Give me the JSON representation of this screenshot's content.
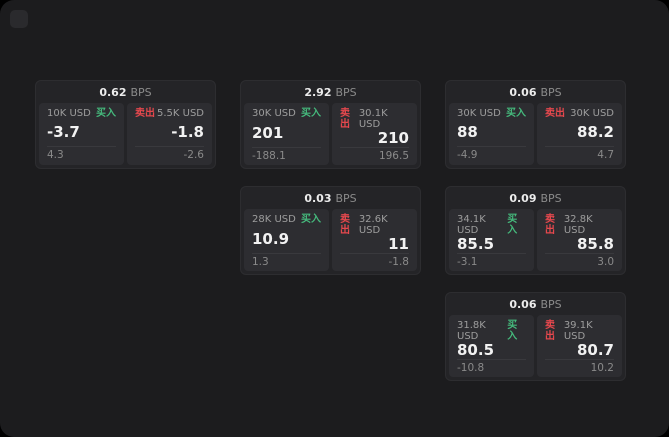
{
  "labels": {
    "buy": "买入",
    "sell": "卖出",
    "bps_suffix": "BPS"
  },
  "colors": {
    "buy_green": "#45b97c",
    "sell_red": "#e5484d",
    "background": "#1c1c1e",
    "card_bg": "#242427",
    "panel_bg": "#2d2d31"
  },
  "cards": [
    {
      "bps": "0.62",
      "buy": {
        "size": "10K USD",
        "price": "-3.7",
        "sub": "4.3"
      },
      "sell": {
        "size": "5.5K USD",
        "price": "-1.8",
        "sub": "-2.6"
      }
    },
    {
      "bps": "2.92",
      "buy": {
        "size": "30K USD",
        "price": "201",
        "sub": "-188.1"
      },
      "sell": {
        "size": "30.1K USD",
        "price": "210",
        "sub": "196.5"
      }
    },
    {
      "bps": "0.06",
      "buy": {
        "size": "30K USD",
        "price": "88",
        "sub": "-4.9"
      },
      "sell": {
        "size": "30K USD",
        "price": "88.2",
        "sub": "4.7"
      }
    },
    {
      "bps": "0.03",
      "buy": {
        "size": "28K USD",
        "price": "10.9",
        "sub": "1.3"
      },
      "sell": {
        "size": "32.6K USD",
        "price": "11",
        "sub": "-1.8"
      }
    },
    {
      "bps": "0.09",
      "buy": {
        "size": "34.1K USD",
        "price": "85.5",
        "sub": "-3.1"
      },
      "sell": {
        "size": "32.8K USD",
        "price": "85.8",
        "sub": "3.0"
      }
    },
    {
      "bps": "0.06",
      "buy": {
        "size": "31.8K USD",
        "price": "80.5",
        "sub": "-10.8"
      },
      "sell": {
        "size": "39.1K USD",
        "price": "80.7",
        "sub": "10.2"
      }
    }
  ]
}
